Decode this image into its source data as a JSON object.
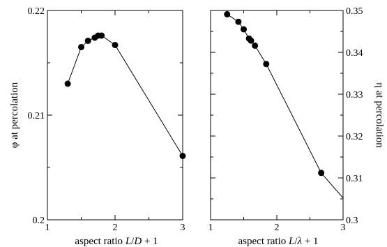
{
  "chart_data": [
    {
      "type": "line",
      "xlabel": {
        "prefix": "aspect ratio ",
        "var1": "L",
        "slash": "/",
        "var2": "D",
        "suffix": " + 1"
      },
      "ylabel": "φ at percolation",
      "xlim": [
        1,
        3
      ],
      "ylim": [
        0.2,
        0.22
      ],
      "x_ticks": [
        "1",
        "2",
        "3"
      ],
      "y_ticks": [
        "0.2",
        "0.21",
        "0.22"
      ],
      "y_ticks_values": [
        0.2,
        0.21,
        0.22
      ],
      "x_ticks_values": [
        1,
        2,
        3
      ],
      "y_axis_side": "left",
      "grid": false,
      "x": [
        1.3,
        1.5,
        1.6,
        1.7,
        1.75,
        1.8,
        2.0,
        3.0
      ],
      "y": [
        0.213,
        0.2165,
        0.2171,
        0.2174,
        0.2176,
        0.2176,
        0.2167,
        0.2061
      ]
    },
    {
      "type": "line",
      "xlabel": {
        "prefix": "aspect ratio ",
        "var1": "L",
        "slash": "/",
        "var2": "λ",
        "suffix": " + 1"
      },
      "ylabel": "η at percolation",
      "xlim": [
        1,
        3
      ],
      "ylim": [
        0.3,
        0.35
      ],
      "x_ticks": [
        "1",
        "2",
        "3"
      ],
      "y_ticks": [
        "0.3",
        "0.31",
        "0.32",
        "0.33",
        "0.34",
        "0.35"
      ],
      "y_ticks_values": [
        0.3,
        0.31,
        0.32,
        0.33,
        0.34,
        0.35
      ],
      "x_ticks_values": [
        1,
        2,
        3
      ],
      "y_axis_side": "right",
      "grid": false,
      "x": [
        1.25,
        1.42,
        1.5,
        1.58,
        1.61,
        1.67,
        1.84,
        2.67,
        3.0
      ],
      "y": [
        0.3491,
        0.3473,
        0.3455,
        0.3433,
        0.3428,
        0.3416,
        0.3372,
        0.3112,
        0.3052
      ],
      "markers_on": [
        true,
        true,
        true,
        true,
        true,
        true,
        true,
        true,
        false
      ]
    }
  ]
}
